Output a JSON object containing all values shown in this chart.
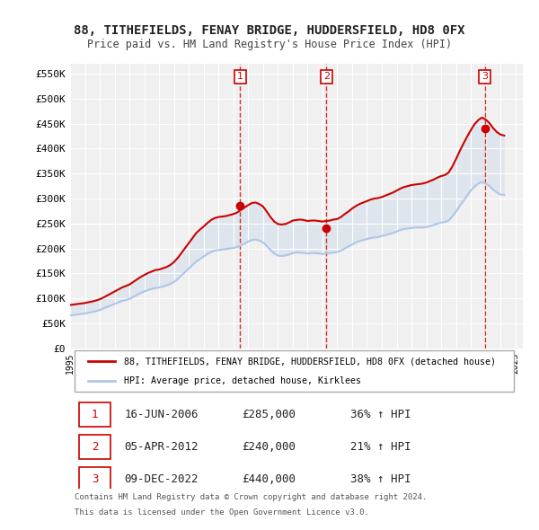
{
  "title": "88, TITHEFIELDS, FENAY BRIDGE, HUDDERSFIELD, HD8 0FX",
  "subtitle": "Price paid vs. HM Land Registry's House Price Index (HPI)",
  "ylabel": "",
  "ylim": [
    0,
    570000
  ],
  "yticks": [
    0,
    50000,
    100000,
    150000,
    200000,
    250000,
    300000,
    350000,
    400000,
    450000,
    500000,
    550000
  ],
  "ytick_labels": [
    "£0",
    "£50K",
    "£100K",
    "£150K",
    "£200K",
    "£250K",
    "£300K",
    "£350K",
    "£400K",
    "£450K",
    "£500K",
    "£550K"
  ],
  "background_color": "#ffffff",
  "plot_bg_color": "#f0f0f0",
  "grid_color": "#ffffff",
  "hpi_color": "#aec6e8",
  "price_color": "#cc0000",
  "sale_marker_color": "#cc0000",
  "vline_color": "#cc0000",
  "transactions": [
    {
      "date": 2006.46,
      "price": 285000,
      "label": "1"
    },
    {
      "date": 2012.26,
      "price": 240000,
      "label": "2"
    },
    {
      "date": 2022.93,
      "price": 440000,
      "label": "3"
    }
  ],
  "legend_line1": "88, TITHEFIELDS, FENAY BRIDGE, HUDDERSFIELD, HD8 0FX (detached house)",
  "legend_line2": "HPI: Average price, detached house, Kirklees",
  "table_data": [
    [
      "1",
      "16-JUN-2006",
      "£285,000",
      "36% ↑ HPI"
    ],
    [
      "2",
      "05-APR-2012",
      "£240,000",
      "21% ↑ HPI"
    ],
    [
      "3",
      "09-DEC-2022",
      "£440,000",
      "38% ↑ HPI"
    ]
  ],
  "footnote1": "Contains HM Land Registry data © Crown copyright and database right 2024.",
  "footnote2": "This data is licensed under the Open Government Licence v3.0.",
  "hpi_data_x": [
    1995.0,
    1995.25,
    1995.5,
    1995.75,
    1996.0,
    1996.25,
    1996.5,
    1996.75,
    1997.0,
    1997.25,
    1997.5,
    1997.75,
    1998.0,
    1998.25,
    1998.5,
    1998.75,
    1999.0,
    1999.25,
    1999.5,
    1999.75,
    2000.0,
    2000.25,
    2000.5,
    2000.75,
    2001.0,
    2001.25,
    2001.5,
    2001.75,
    2002.0,
    2002.25,
    2002.5,
    2002.75,
    2003.0,
    2003.25,
    2003.5,
    2003.75,
    2004.0,
    2004.25,
    2004.5,
    2004.75,
    2005.0,
    2005.25,
    2005.5,
    2005.75,
    2006.0,
    2006.25,
    2006.5,
    2006.75,
    2007.0,
    2007.25,
    2007.5,
    2007.75,
    2008.0,
    2008.25,
    2008.5,
    2008.75,
    2009.0,
    2009.25,
    2009.5,
    2009.75,
    2010.0,
    2010.25,
    2010.5,
    2010.75,
    2011.0,
    2011.25,
    2011.5,
    2011.75,
    2012.0,
    2012.25,
    2012.5,
    2012.75,
    2013.0,
    2013.25,
    2013.5,
    2013.75,
    2014.0,
    2014.25,
    2014.5,
    2014.75,
    2015.0,
    2015.25,
    2015.5,
    2015.75,
    2016.0,
    2016.25,
    2016.5,
    2016.75,
    2017.0,
    2017.25,
    2017.5,
    2017.75,
    2018.0,
    2018.25,
    2018.5,
    2018.75,
    2019.0,
    2019.25,
    2019.5,
    2019.75,
    2020.0,
    2020.25,
    2020.5,
    2020.75,
    2021.0,
    2021.25,
    2021.5,
    2021.75,
    2022.0,
    2022.25,
    2022.5,
    2022.75,
    2023.0,
    2023.25,
    2023.5,
    2023.75,
    2024.0,
    2024.25
  ],
  "hpi_data_y": [
    66000,
    67000,
    68000,
    69000,
    70000,
    71500,
    73000,
    75000,
    77000,
    80000,
    83000,
    86000,
    89000,
    92000,
    95000,
    97000,
    99000,
    103000,
    107000,
    111000,
    114000,
    117000,
    119000,
    121000,
    122000,
    124000,
    126000,
    129000,
    133000,
    139000,
    146000,
    153000,
    160000,
    167000,
    174000,
    179000,
    184000,
    189000,
    193000,
    196000,
    197000,
    198000,
    199000,
    200000,
    201000,
    203000,
    206000,
    210000,
    214000,
    217000,
    218000,
    216000,
    212000,
    205000,
    197000,
    190000,
    186000,
    185000,
    186000,
    188000,
    191000,
    192000,
    192000,
    191000,
    190000,
    191000,
    191000,
    190000,
    189000,
    190000,
    191000,
    192000,
    193000,
    196000,
    200000,
    204000,
    208000,
    212000,
    215000,
    217000,
    219000,
    221000,
    222000,
    223000,
    225000,
    227000,
    229000,
    231000,
    234000,
    237000,
    239000,
    240000,
    241000,
    242000,
    242000,
    242000,
    243000,
    245000,
    247000,
    250000,
    252000,
    253000,
    256000,
    264000,
    274000,
    285000,
    295000,
    306000,
    316000,
    324000,
    330000,
    333000,
    330000,
    325000,
    318000,
    312000,
    308000,
    307000
  ],
  "price_line_data_x": [
    1995.0,
    1995.25,
    1995.5,
    1995.75,
    1996.0,
    1996.25,
    1996.5,
    1996.75,
    1997.0,
    1997.25,
    1997.5,
    1997.75,
    1998.0,
    1998.25,
    1998.5,
    1998.75,
    1999.0,
    1999.25,
    1999.5,
    1999.75,
    2000.0,
    2000.25,
    2000.5,
    2000.75,
    2001.0,
    2001.25,
    2001.5,
    2001.75,
    2002.0,
    2002.25,
    2002.5,
    2002.75,
    2003.0,
    2003.25,
    2003.5,
    2003.75,
    2004.0,
    2004.25,
    2004.5,
    2004.75,
    2005.0,
    2005.25,
    2005.5,
    2005.75,
    2006.0,
    2006.25,
    2006.5,
    2006.75,
    2007.0,
    2007.25,
    2007.5,
    2007.75,
    2008.0,
    2008.25,
    2008.5,
    2008.75,
    2009.0,
    2009.25,
    2009.5,
    2009.75,
    2010.0,
    2010.25,
    2010.5,
    2010.75,
    2011.0,
    2011.25,
    2011.5,
    2011.75,
    2012.0,
    2012.25,
    2012.5,
    2012.75,
    2013.0,
    2013.25,
    2013.5,
    2013.75,
    2014.0,
    2014.25,
    2014.5,
    2014.75,
    2015.0,
    2015.25,
    2015.5,
    2015.75,
    2016.0,
    2016.25,
    2016.5,
    2016.75,
    2017.0,
    2017.25,
    2017.5,
    2017.75,
    2018.0,
    2018.25,
    2018.5,
    2018.75,
    2019.0,
    2019.25,
    2019.5,
    2019.75,
    2020.0,
    2020.25,
    2020.5,
    2020.75,
    2021.0,
    2021.25,
    2021.5,
    2021.75,
    2022.0,
    2022.25,
    2022.5,
    2022.75,
    2023.0,
    2023.25,
    2023.5,
    2023.75,
    2024.0,
    2024.25
  ],
  "price_line_data_y": [
    87000,
    88000,
    89000,
    90000,
    91000,
    92500,
    94000,
    96000,
    98500,
    102000,
    106000,
    110000,
    114000,
    118000,
    122000,
    125000,
    128000,
    133000,
    138000,
    143000,
    147000,
    151000,
    154000,
    157000,
    158000,
    160500,
    163000,
    167000,
    173000,
    181000,
    191000,
    201000,
    211000,
    221000,
    231000,
    238000,
    244000,
    251000,
    257000,
    261000,
    263000,
    264000,
    265000,
    267000,
    269000,
    272000,
    277000,
    282000,
    287000,
    291000,
    292000,
    289000,
    284000,
    274000,
    263000,
    254000,
    249000,
    248000,
    249000,
    252000,
    256000,
    257000,
    258000,
    257000,
    255000,
    256000,
    256000,
    255000,
    254000,
    255000,
    256000,
    258000,
    259000,
    263000,
    269000,
    274000,
    280000,
    285000,
    289000,
    292000,
    295000,
    298000,
    300000,
    301000,
    303000,
    306000,
    309000,
    312000,
    316000,
    320000,
    323000,
    325000,
    327000,
    328000,
    329000,
    330000,
    332000,
    335000,
    338000,
    342000,
    345000,
    347000,
    352000,
    364000,
    379000,
    395000,
    410000,
    424000,
    437000,
    449000,
    457000,
    462000,
    458000,
    451000,
    441000,
    433000,
    428000,
    426000
  ]
}
